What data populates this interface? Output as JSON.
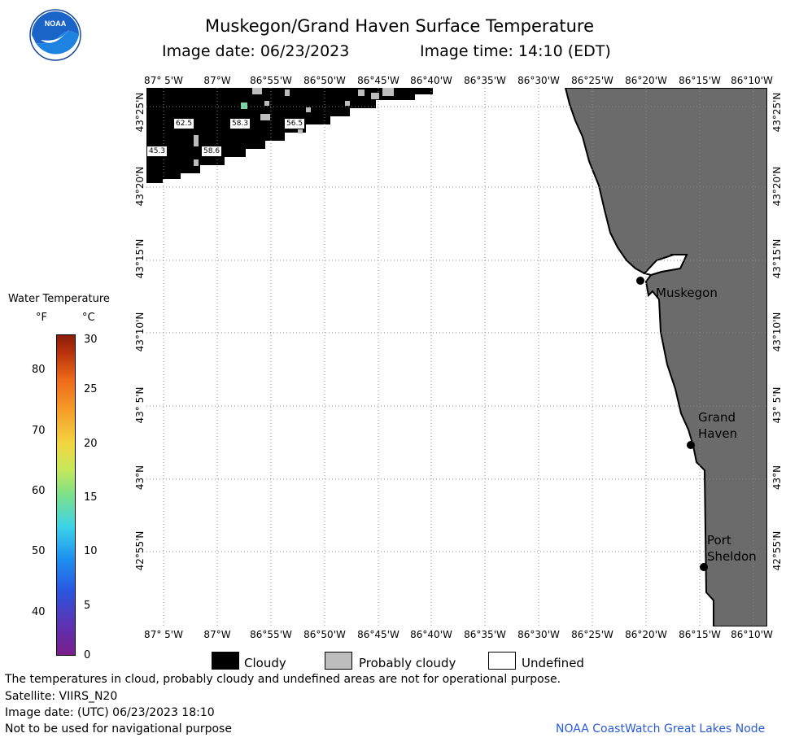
{
  "header": {
    "title": "Muskegon/Grand Haven Surface Temperature",
    "image_date": "Image date: 06/23/2023",
    "image_time": "Image time: 14:10 (EDT)"
  },
  "logo": {
    "text": "NOAA"
  },
  "lon_labels": [
    "87° 5'W",
    "87°W",
    "86°55'W",
    "86°50'W",
    "86°45'W",
    "86°40'W",
    "86°35'W",
    "86°30'W",
    "86°25'W",
    "86°20'W",
    "86°15'W",
    "86°10'W"
  ],
  "lat_labels": [
    "43°25'N",
    "43°20'N",
    "43°15'N",
    "43°10'N",
    "43° 5'N",
    "43°N",
    "42°55'N"
  ],
  "cities": [
    {
      "name": "Muskegon"
    },
    {
      "name": "Grand Haven",
      "line1": "Grand",
      "line2": "Haven"
    },
    {
      "name": "Port Sheldon",
      "line1": "Port",
      "line2": "Sheldon"
    }
  ],
  "temp_labels": [
    "62.5",
    "58.3",
    "56.5",
    "45.3",
    "58.6"
  ],
  "colorbar": {
    "title": "Water Temperature",
    "unit_f": "°F",
    "unit_c": "°C",
    "f_ticks": [
      "80",
      "70",
      "60",
      "50",
      "40"
    ],
    "c_ticks": [
      "30",
      "25",
      "20",
      "15",
      "10",
      "5",
      "0"
    ]
  },
  "legend": {
    "cloudy": "Cloudy",
    "probably_cloudy": "Probably cloudy",
    "undefined": "Undefined"
  },
  "footer": {
    "note": "The temperatures in cloud, probably cloudy and undefined areas are not for operational purpose.",
    "satellite": "Satellite: VIIRS_N20",
    "utc_date": "Image date: (UTC) 06/23/2023  18:10",
    "nav": "Not to be used for navigational purpose",
    "credit": "NOAA CoastWatch Great Lakes Node"
  },
  "colors": {
    "land": "#6b6b6b",
    "cloudy": "#000000",
    "probably_cloudy": "#bdbdbd",
    "undefined": "#ffffff",
    "grid": "#888888"
  }
}
